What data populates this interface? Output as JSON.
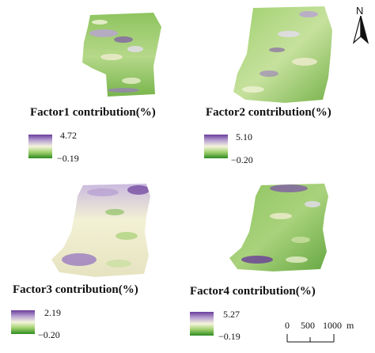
{
  "maps": [
    {
      "title": "Factor1 contribution(%)",
      "legend_max": "4.72",
      "legend_min": "−0.19"
    },
    {
      "title": "Factor2 contribution(%)",
      "legend_max": "5.10",
      "legend_min": "−0.20"
    },
    {
      "title": "Factor3 contribution(%)",
      "legend_max": "2.19",
      "legend_min": "−0.20"
    },
    {
      "title": "Factor4 contribution(%)",
      "legend_max": "5.27",
      "legend_min": "−0.19"
    }
  ],
  "north_label": "N",
  "scale": {
    "ticks": [
      "0",
      "500",
      "1000"
    ],
    "unit": "m"
  },
  "colors": {
    "high": "#6a3d9a",
    "mid": "#f5f5dc",
    "low": "#2e8b22"
  }
}
